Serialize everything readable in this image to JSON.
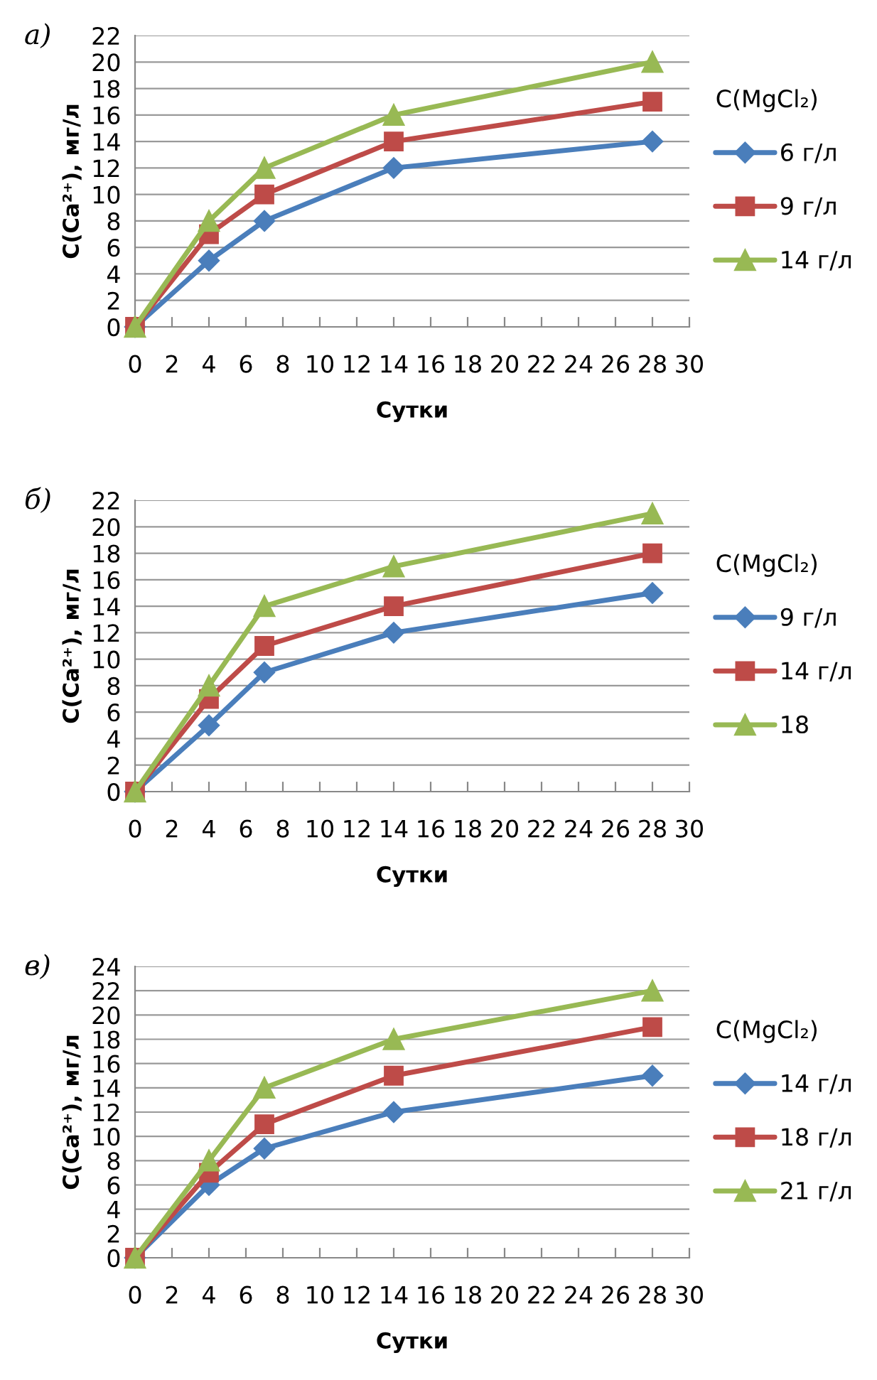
{
  "chart_data": [
    {
      "type": "line",
      "title": "а)",
      "xlabel": "Сутки",
      "ylabel": "C(Ca²⁺), мг/л",
      "legend_title": "C(MgCl₂)",
      "legend": "right",
      "grid": "y",
      "line_style": "solid",
      "x": [
        0,
        4,
        7,
        14,
        28
      ],
      "xlim": [
        0,
        30
      ],
      "xticks": [
        0,
        2,
        4,
        6,
        8,
        10,
        12,
        14,
        16,
        18,
        20,
        22,
        24,
        26,
        28,
        30
      ],
      "ylim": [
        0,
        22
      ],
      "yticks": [
        0,
        2,
        4,
        6,
        8,
        10,
        12,
        14,
        16,
        18,
        20,
        22
      ],
      "series": [
        {
          "name": "6 г/л",
          "color": "#4a7ebb",
          "marker": "diamond",
          "values": [
            0,
            5,
            8,
            12,
            14
          ]
        },
        {
          "name": "9 г/л",
          "color": "#be4b48",
          "marker": "square",
          "values": [
            0,
            7,
            10,
            14,
            17
          ]
        },
        {
          "name": "14 г/л",
          "color": "#98b954",
          "marker": "triangle",
          "values": [
            0,
            8,
            12,
            16,
            20
          ]
        }
      ]
    },
    {
      "type": "line",
      "title": "б)",
      "xlabel": "Сутки",
      "ylabel": "C(Ca²⁺), мг/л",
      "legend_title": "C(MgCl₂)",
      "legend": "right",
      "grid": "y",
      "line_style": "solid",
      "x": [
        0,
        4,
        7,
        14,
        28
      ],
      "xlim": [
        0,
        30
      ],
      "xticks": [
        0,
        2,
        4,
        6,
        8,
        10,
        12,
        14,
        16,
        18,
        20,
        22,
        24,
        26,
        28,
        30
      ],
      "ylim": [
        0,
        22
      ],
      "yticks": [
        0,
        2,
        4,
        6,
        8,
        10,
        12,
        14,
        16,
        18,
        20,
        22
      ],
      "series": [
        {
          "name": "9 г/л",
          "color": "#4a7ebb",
          "marker": "diamond",
          "values": [
            0,
            5,
            9,
            12,
            15
          ]
        },
        {
          "name": "14 г/л",
          "color": "#be4b48",
          "marker": "square",
          "values": [
            0,
            7,
            11,
            14,
            18
          ]
        },
        {
          "name": "18",
          "color": "#98b954",
          "marker": "triangle",
          "values": [
            0,
            8,
            14,
            17,
            21
          ]
        }
      ]
    },
    {
      "type": "line",
      "title": "в)",
      "xlabel": "Сутки",
      "ylabel": "C(Ca²⁺), мг/л",
      "legend_title": "C(MgCl₂)",
      "legend": "right",
      "grid": "y",
      "line_style": "solid",
      "x": [
        0,
        4,
        7,
        14,
        28
      ],
      "xlim": [
        0,
        30
      ],
      "xticks": [
        0,
        2,
        4,
        6,
        8,
        10,
        12,
        14,
        16,
        18,
        20,
        22,
        24,
        26,
        28,
        30
      ],
      "ylim": [
        0,
        24
      ],
      "yticks": [
        0,
        2,
        4,
        6,
        8,
        10,
        12,
        14,
        16,
        18,
        20,
        22,
        24
      ],
      "series": [
        {
          "name": "14 г/л",
          "color": "#4a7ebb",
          "marker": "diamond",
          "values": [
            0,
            6,
            9,
            12,
            15
          ]
        },
        {
          "name": "18 г/л",
          "color": "#be4b48",
          "marker": "square",
          "values": [
            0,
            7,
            11,
            15,
            19
          ]
        },
        {
          "name": "21 г/л",
          "color": "#98b954",
          "marker": "triangle",
          "values": [
            0,
            8,
            14,
            18,
            22
          ]
        }
      ]
    }
  ]
}
